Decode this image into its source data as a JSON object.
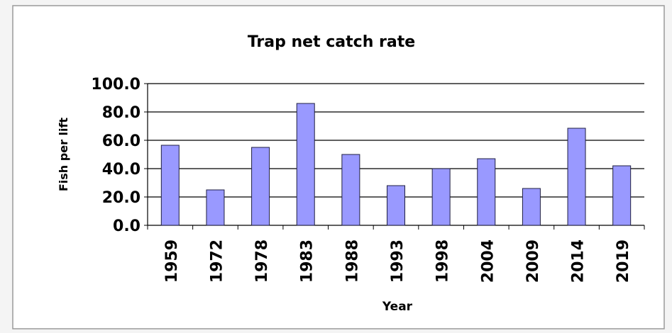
{
  "chart_data": {
    "type": "bar",
    "title": "Trap net catch rate",
    "x_label": "Year",
    "y_label": "Fish per lift",
    "categories": [
      "1959",
      "1972",
      "1978",
      "1983",
      "1988",
      "1993",
      "1998",
      "2004",
      "2009",
      "2014",
      "2019"
    ],
    "values": [
      56.5,
      25,
      55,
      86,
      50,
      28,
      40,
      47,
      26,
      68.5,
      42
    ],
    "color": "#9999ff",
    "ylim": [
      0,
      100
    ],
    "yticks": [
      {
        "value": 0,
        "label": "0.0"
      },
      {
        "value": 20,
        "label": "20.0"
      },
      {
        "value": 40,
        "label": "40.0"
      },
      {
        "value": 60,
        "label": "60.0"
      },
      {
        "value": 80,
        "label": "80.0"
      },
      {
        "value": 100,
        "label": "100.0"
      }
    ],
    "grid": true
  }
}
